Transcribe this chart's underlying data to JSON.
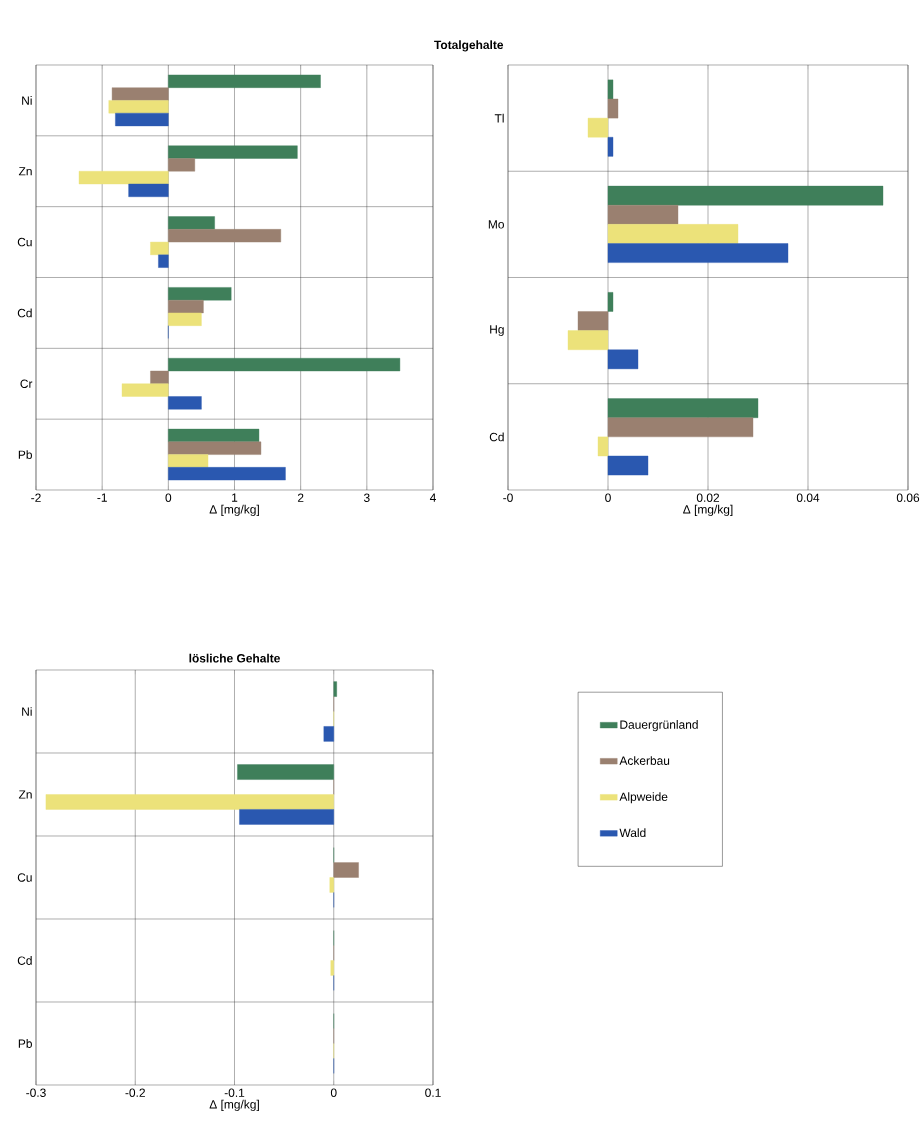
{
  "chart_data": [
    {
      "type": "bar",
      "orientation": "horizontal",
      "title": "Totalgehalte",
      "xlabel": "Δ [mg/kg]",
      "categories": [
        "Ni",
        "Zn",
        "Cu",
        "Cd",
        "Cr",
        "Pb"
      ],
      "xlim": [
        -2,
        4
      ],
      "xticks": [
        -2,
        -1,
        0,
        1,
        2,
        3,
        4
      ],
      "grid": true,
      "series": [
        {
          "color": "#3f7f5a",
          "values": [
            2.3,
            1.95,
            0.7,
            0.95,
            3.5,
            1.37
          ]
        },
        {
          "color": "#9a8070",
          "values": [
            -0.85,
            0.4,
            1.7,
            0.53,
            -0.27,
            1.4
          ]
        },
        {
          "color": "#ece27a",
          "values": [
            -0.9,
            -1.35,
            -0.27,
            0.5,
            -0.7,
            0.6
          ]
        },
        {
          "color": "#2a58b0",
          "values": [
            -0.8,
            -0.6,
            -0.15,
            0,
            0.5,
            1.77
          ]
        }
      ]
    },
    {
      "type": "bar",
      "orientation": "horizontal",
      "xlabel": "Δ [mg/kg]",
      "categories": [
        "Tl",
        "Mo",
        "Hg",
        "Cd"
      ],
      "xlim": [
        -0.02,
        0.06
      ],
      "xticks": [
        {
          "value": -0.02,
          "label": "-0"
        },
        0,
        0.02,
        0.04,
        0.06
      ],
      "grid": true,
      "series": [
        {
          "color": "#3f7f5a",
          "values": [
            0.001,
            0.055,
            0.001,
            0.03
          ]
        },
        {
          "color": "#9a8070",
          "values": [
            0.002,
            0.014,
            -0.006,
            0.029
          ]
        },
        {
          "color": "#ece27a",
          "values": [
            -0.004,
            0.026,
            -0.008,
            -0.002
          ]
        },
        {
          "color": "#2a58b0",
          "values": [
            0.001,
            0.036,
            0.006,
            0.008
          ]
        }
      ]
    },
    {
      "type": "bar",
      "orientation": "horizontal",
      "title": "lösliche Gehalte",
      "xlabel": "Δ [mg/kg]",
      "categories": [
        "Ni",
        "Zn",
        "Cu",
        "Cd",
        "Pb"
      ],
      "xlim": [
        -0.3,
        0.1
      ],
      "xticks": [
        -0.3,
        -0.2,
        -0.1,
        0,
        0.1
      ],
      "grid": true,
      "legend": "right",
      "series": [
        {
          "name": "Dauergrünland",
          "color": "#3f7f5a",
          "values": [
            0.003,
            -0.097,
            0,
            0,
            0
          ]
        },
        {
          "name": "Ackerbau",
          "color": "#9a8070",
          "values": [
            0,
            0,
            0.025,
            0,
            0
          ]
        },
        {
          "name": "Alpweide",
          "color": "#ece27a",
          "values": [
            0,
            -0.29,
            -0.004,
            -0.003,
            0
          ]
        },
        {
          "name": "Wald",
          "color": "#2a58b0",
          "values": [
            -0.01,
            -0.095,
            0,
            0,
            0
          ]
        }
      ]
    }
  ]
}
